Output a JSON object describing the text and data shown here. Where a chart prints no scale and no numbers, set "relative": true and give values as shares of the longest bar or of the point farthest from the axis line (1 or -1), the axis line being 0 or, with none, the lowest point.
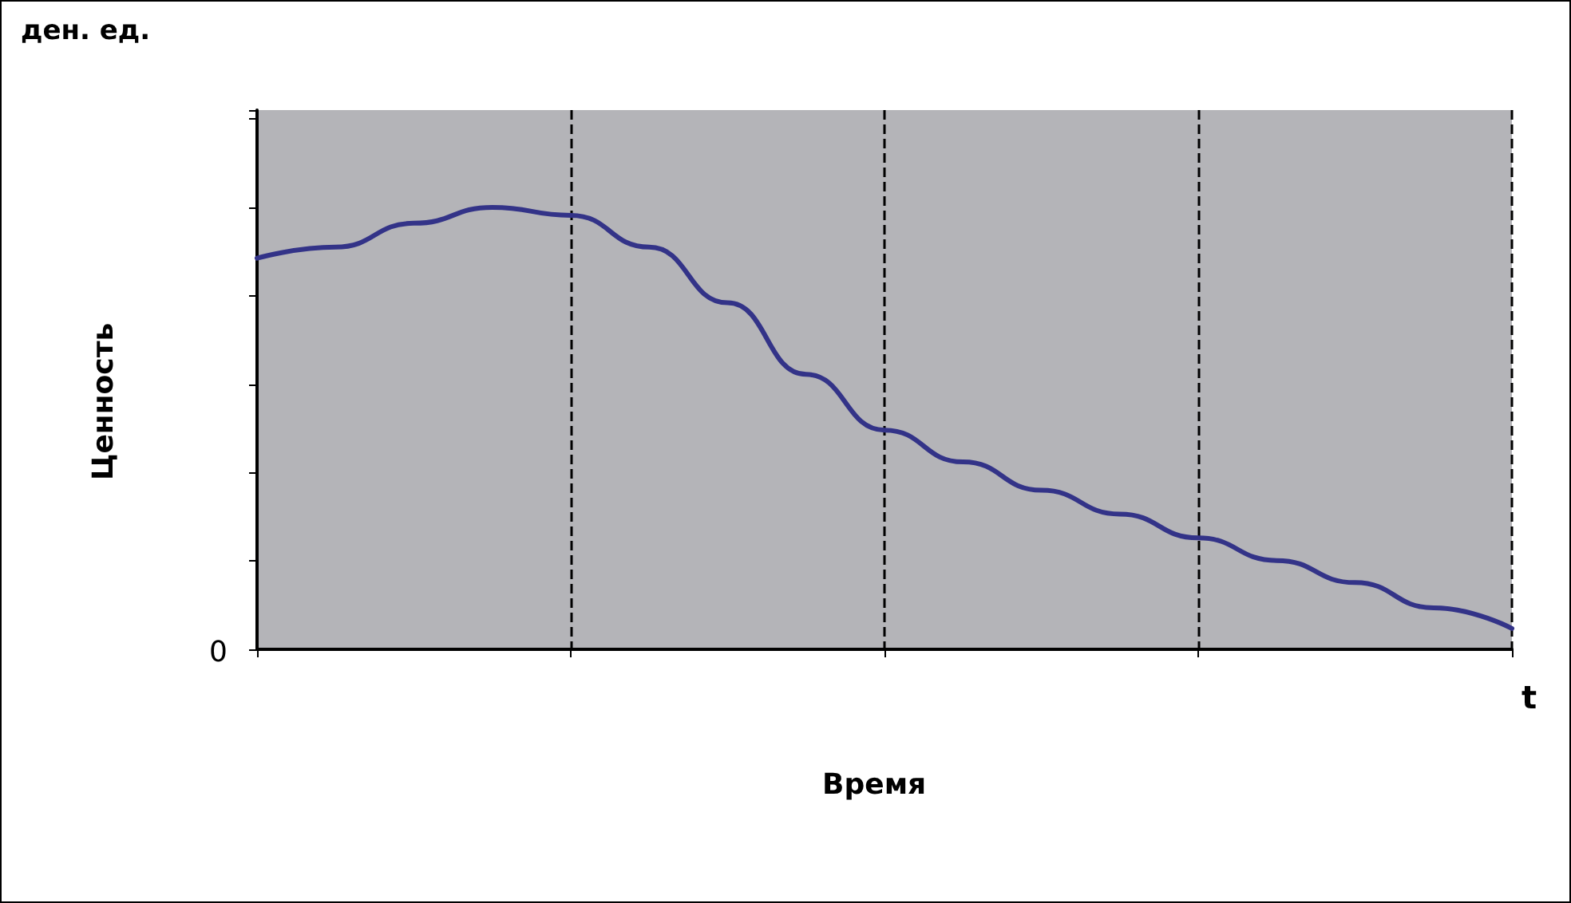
{
  "chart_data": {
    "type": "line",
    "relative": true,
    "xlabel": "Время",
    "ylabel": "Ценность",
    "annotations": [
      "ден. ед.",
      "0",
      "t"
    ],
    "categories": [
      null,
      null,
      null,
      null,
      null,
      null,
      null,
      null,
      null,
      null,
      null,
      null,
      null,
      null,
      null,
      null,
      null
    ],
    "series": [
      {
        "color": "#333388",
        "values": [
          0.885,
          0.91,
          0.964,
          1,
          0.982,
          0.91,
          0.784,
          0.622,
          0.496,
          0.424,
          0.36,
          0.306,
          0.252,
          0.201,
          0.151,
          0.094,
          0.047
        ]
      }
    ],
    "grid": "x",
    "marker": "none",
    "line_style": "solid"
  }
}
